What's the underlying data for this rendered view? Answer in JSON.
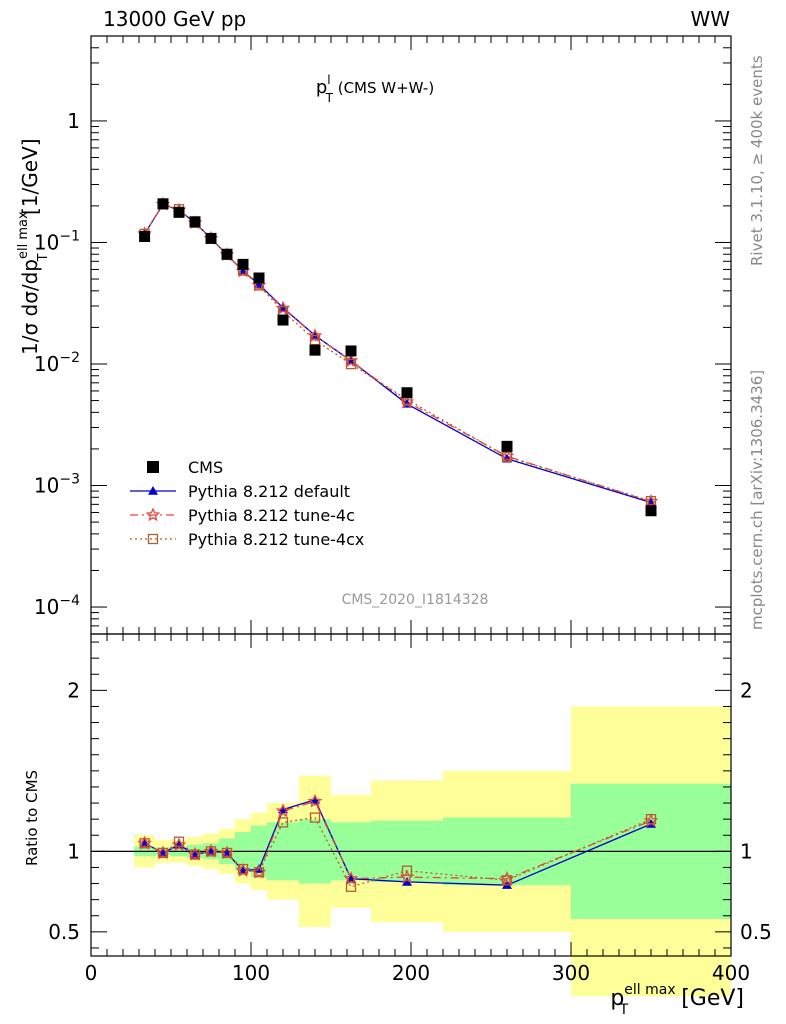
{
  "header": {
    "left": "13000 GeV pp",
    "right": "WW"
  },
  "side_labels": {
    "rivet": "Rivet 3.1.10, ≥ 400k events",
    "mcplots": "mcplots.cern.ch [arXiv:1306.3436]"
  },
  "chart_data": {
    "type": "line",
    "title_main": "p",
    "title_sup": "l",
    "title_sub": "T",
    "title_rest": " (CMS W+W-)",
    "analysis_label": "CMS_2020_I1814328",
    "top_panel": {
      "ylabel": "1/σ dσ/dp",
      "ylabel_sup": "ell max",
      "ylabel_sub": "T",
      "ylabel_unit": " [1/GeV]",
      "yscale": "log",
      "ylim": [
        6e-05,
        5
      ],
      "y_ticks": [
        {
          "v": 1,
          "label": "1"
        },
        {
          "v": 0.1,
          "base": "10",
          "exp": "−1"
        },
        {
          "v": 0.01,
          "base": "10",
          "exp": "−2"
        },
        {
          "v": 0.001,
          "base": "10",
          "exp": "−3"
        },
        {
          "v": 0.0001,
          "base": "10",
          "exp": "−4"
        }
      ]
    },
    "bottom_panel": {
      "ylabel": "Ratio to CMS",
      "ylim": [
        0.35,
        2.35
      ],
      "y_ticks": [
        0.5,
        1,
        2
      ],
      "reference_line": 1
    },
    "x": {
      "label_main": "p",
      "label_sup": "ell max",
      "label_sub": "T",
      "label_unit": " [GeV]",
      "xlim": [
        0,
        400
      ],
      "ticks": [
        0,
        100,
        200,
        300,
        400
      ]
    },
    "legend": [
      {
        "name": "CMS",
        "key": "data"
      },
      {
        "name": "Pythia 8.212 default",
        "key": "default"
      },
      {
        "name": "Pythia 8.212 tune-4c",
        "key": "tune4c"
      },
      {
        "name": "Pythia 8.212 tune-4cx",
        "key": "tune4cx"
      }
    ],
    "bins": [
      {
        "lo": 27,
        "hi": 40,
        "x": 33.5,
        "data": 0.112,
        "stat": 0.03,
        "tot": 0.1
      },
      {
        "lo": 40,
        "hi": 50,
        "x": 45,
        "data": 0.208,
        "stat": 0.025,
        "tot": 0.07
      },
      {
        "lo": 50,
        "hi": 60,
        "x": 55,
        "data": 0.177,
        "stat": 0.03,
        "tot": 0.07
      },
      {
        "lo": 60,
        "hi": 70,
        "x": 65,
        "data": 0.148,
        "stat": 0.04,
        "tot": 0.09
      },
      {
        "lo": 70,
        "hi": 80,
        "x": 75,
        "data": 0.108,
        "stat": 0.05,
        "tot": 0.11
      },
      {
        "lo": 80,
        "hi": 90,
        "x": 85,
        "data": 0.08,
        "stat": 0.08,
        "tot": 0.14
      },
      {
        "lo": 90,
        "hi": 100,
        "x": 95,
        "data": 0.066,
        "stat": 0.12,
        "tot": 0.2
      },
      {
        "lo": 100,
        "hi": 110,
        "x": 105,
        "data": 0.051,
        "stat": 0.16,
        "tot": 0.24
      },
      {
        "lo": 110,
        "hi": 130,
        "x": 120,
        "data": 0.023,
        "stat": 0.18,
        "tot": 0.3
      },
      {
        "lo": 130,
        "hi": 150,
        "x": 140,
        "data": 0.013,
        "stat": 0.2,
        "tot": 0.47
      },
      {
        "lo": 150,
        "hi": 175,
        "x": 162.5,
        "data": 0.0128,
        "stat": 0.18,
        "tot": 0.35
      },
      {
        "lo": 175,
        "hi": 220,
        "x": 197.5,
        "data": 0.0058,
        "stat": 0.19,
        "tot": 0.44
      },
      {
        "lo": 220,
        "hi": 300,
        "x": 260,
        "data": 0.0021,
        "stat": 0.21,
        "tot": 0.5
      },
      {
        "lo": 300,
        "hi": 400,
        "x": 350,
        "data": 0.00062,
        "stat": 0.42,
        "tot": 0.9
      }
    ],
    "series": [
      {
        "name": "Pythia 8.212 default",
        "key": "default",
        "color": "#0000cc",
        "ratio": [
          1.05,
          0.99,
          1.04,
          0.98,
          1.0,
          0.99,
          0.88,
          0.89,
          1.26,
          1.32,
          0.83,
          0.81,
          0.79,
          1.17
        ]
      },
      {
        "name": "Pythia 8.212 tune-4c",
        "key": "tune4c",
        "color": "#e8473f",
        "ratio": [
          1.05,
          0.99,
          1.04,
          0.98,
          1.0,
          0.99,
          0.88,
          0.87,
          1.25,
          1.31,
          0.83,
          0.84,
          0.83,
          1.19
        ]
      },
      {
        "name": "Pythia 8.212 tune-4cx",
        "key": "tune4cx",
        "color": "#b85c2c",
        "ratio": [
          1.05,
          0.99,
          1.06,
          0.98,
          1.0,
          0.99,
          0.89,
          0.87,
          1.18,
          1.21,
          0.78,
          0.88,
          0.82,
          1.2
        ]
      }
    ],
    "colors": {
      "band_stat": "#99ff99",
      "band_total": "#ffff99",
      "data": "#000000"
    }
  }
}
